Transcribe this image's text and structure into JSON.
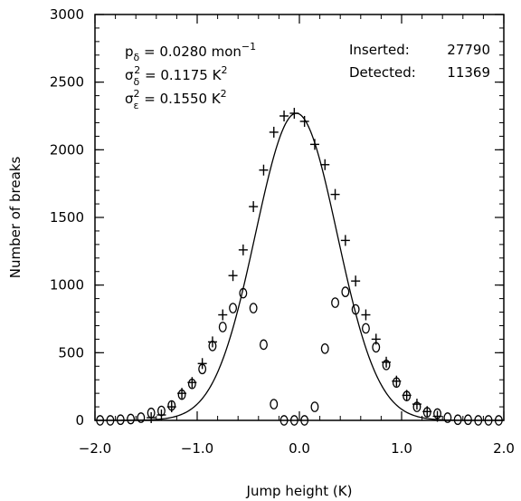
{
  "chart_data": {
    "type": "scatter",
    "xlabel": "Jump height (K)",
    "ylabel": "Number of breaks",
    "xlim": [
      -2.0,
      2.0
    ],
    "ylim": [
      0,
      3000
    ],
    "x_ticks": [
      "−2.0",
      "−1.0",
      "0.0",
      "1.0",
      "2.0"
    ],
    "x_tick_values": [
      -2.0,
      -1.0,
      0.0,
      1.0,
      2.0
    ],
    "y_ticks": [
      "0",
      "500",
      "1000",
      "1500",
      "2000",
      "2500",
      "3000"
    ],
    "y_tick_values": [
      0,
      500,
      1000,
      1500,
      2000,
      2500,
      3000
    ],
    "grid": false,
    "parameters": [
      {
        "symbol": "p",
        "sub": "δ",
        "sup": "",
        "rest": " = 0.0280 mon",
        "unit_sup": "−1"
      },
      {
        "symbol": "σ",
        "sub": "δ",
        "sup": "2",
        "rest": " = 0.1175 K",
        "unit_sup": "2"
      },
      {
        "symbol": "σ",
        "sub": "ε",
        "sup": "2",
        "rest": " = 0.1550 K",
        "unit_sup": "2"
      }
    ],
    "counts": [
      {
        "label": "Inserted:",
        "value": "27790"
      },
      {
        "label": "Detected:",
        "value": "11369"
      }
    ],
    "series": [
      {
        "marker": "plus",
        "x": [
          -1.45,
          -1.35,
          -1.25,
          -1.15,
          -1.05,
          -0.95,
          -0.85,
          -0.75,
          -0.65,
          -0.55,
          -0.45,
          -0.35,
          -0.25,
          -0.15,
          -0.05,
          0.05,
          0.15,
          0.25,
          0.35,
          0.45,
          0.55,
          0.65,
          0.75,
          0.85,
          0.95,
          1.05,
          1.15,
          1.25,
          1.35
        ],
        "values": [
          20,
          40,
          100,
          200,
          280,
          420,
          580,
          780,
          1070,
          1260,
          1580,
          1850,
          2130,
          2250,
          2270,
          2210,
          2040,
          1890,
          1670,
          1330,
          1030,
          780,
          600,
          430,
          290,
          185,
          120,
          65,
          30
        ]
      },
      {
        "marker": "circle",
        "x": [
          -1.95,
          -1.85,
          -1.75,
          -1.65,
          -1.55,
          -1.45,
          -1.35,
          -1.25,
          -1.15,
          -1.05,
          -0.95,
          -0.85,
          -0.75,
          -0.65,
          -0.55,
          -0.45,
          -0.35,
          -0.25,
          -0.15,
          -0.05,
          0.05,
          0.15,
          0.25,
          0.35,
          0.45,
          0.55,
          0.65,
          0.75,
          0.85,
          0.95,
          1.05,
          1.15,
          1.25,
          1.35,
          1.45,
          1.55,
          1.65,
          1.75,
          1.85,
          1.95
        ],
        "values": [
          0,
          0,
          5,
          10,
          20,
          55,
          70,
          110,
          190,
          270,
          380,
          550,
          690,
          830,
          940,
          830,
          560,
          120,
          0,
          0,
          0,
          100,
          530,
          870,
          950,
          820,
          680,
          540,
          410,
          280,
          180,
          100,
          60,
          50,
          20,
          5,
          5,
          0,
          0,
          0
        ]
      }
    ],
    "curve": {
      "type": "gaussian",
      "amplitude": 2270,
      "mean": -0.03,
      "sigma": 0.4,
      "sample_x": [
        -2.0,
        -1.5,
        -1.0,
        -0.5,
        0.0,
        0.5,
        1.0,
        1.5,
        2.0
      ],
      "sample_y": [
        0,
        20,
        132,
        1083,
        2265,
        1083,
        132,
        20,
        0
      ]
    }
  }
}
